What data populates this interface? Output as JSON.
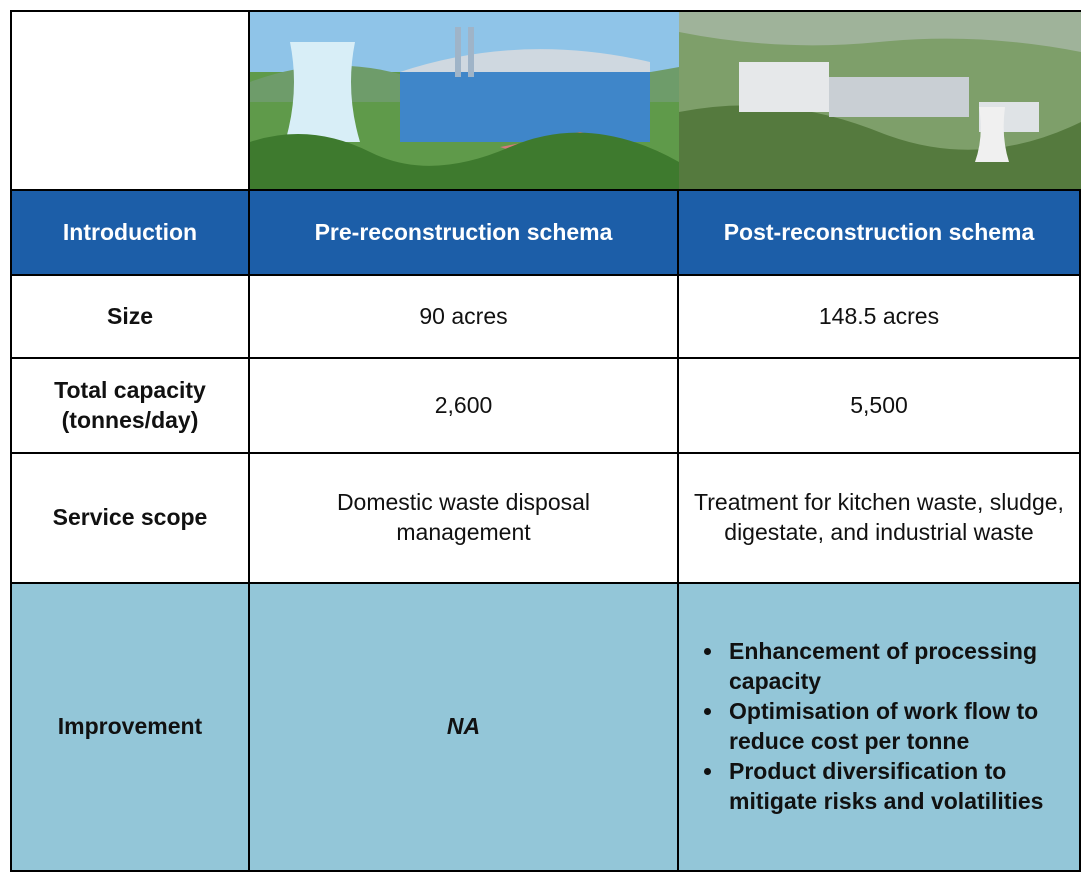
{
  "table": {
    "header": [
      "Introduction",
      "Pre-reconstruction schema",
      "Post-reconstruction schema"
    ],
    "rows": [
      [
        "Size",
        "90 acres",
        "148.5 acres"
      ],
      [
        "Total capacity (tonnes/day)",
        "2,600",
        "5,500"
      ],
      [
        "Service scope",
        "Domestic waste disposal management",
        "Treatment for kitchen waste, sludge, digestate, and industrial waste"
      ],
      [
        "Improvement",
        "NA"
      ]
    ],
    "improvement_points": [
      "Enhancement of processing capacity",
      "Optimisation of work flow to reduce cost per tonne",
      "Product diversification to mitigate risks and volatilities"
    ]
  }
}
